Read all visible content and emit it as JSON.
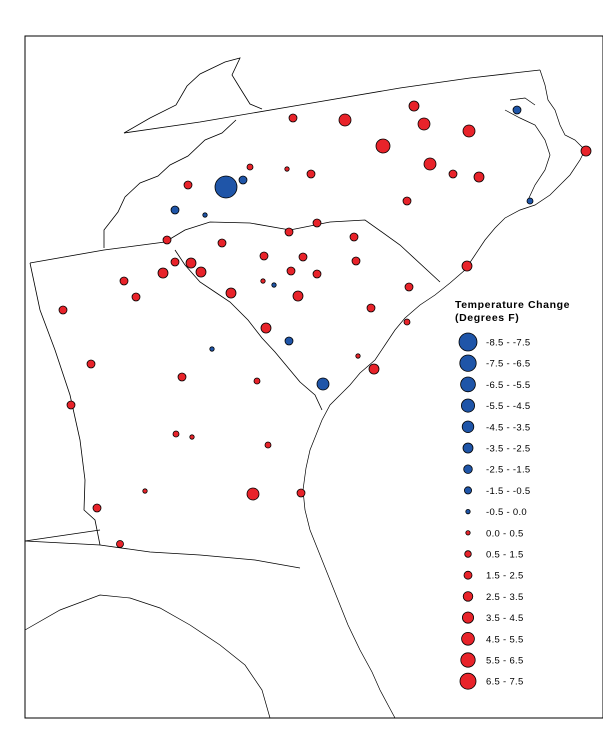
{
  "legend": {
    "title_line1": "Temperature Change",
    "title_line2": "(Degrees F)",
    "entries": [
      {
        "label": "-8.5 - -7.5",
        "color": "#1f55a8",
        "size": 9
      },
      {
        "label": "-7.5 - -6.5",
        "color": "#1f55a8",
        "size": 8.2
      },
      {
        "label": "-6.5 - -5.5",
        "color": "#1f55a8",
        "size": 7.4
      },
      {
        "label": "-5.5 - -4.5",
        "color": "#1f55a8",
        "size": 6.6
      },
      {
        "label": "-4.5 - -3.5",
        "color": "#1f55a8",
        "size": 5.8
      },
      {
        "label": "-3.5 - -2.5",
        "color": "#1f55a8",
        "size": 5
      },
      {
        "label": "-2.5 - -1.5",
        "color": "#1f55a8",
        "size": 4.3
      },
      {
        "label": "-1.5 - -0.5",
        "color": "#1f55a8",
        "size": 3.6
      },
      {
        "label": "-0.5 - 0.0",
        "color": "#1f55a8",
        "size": 2.2
      },
      {
        "label": "0.0 - 0.5",
        "color": "#e8232a",
        "size": 2.2
      },
      {
        "label": "0.5 - 1.5",
        "color": "#e8232a",
        "size": 3.3
      },
      {
        "label": "1.5 - 2.5",
        "color": "#e8232a",
        "size": 4
      },
      {
        "label": "2.5 - 3.5",
        "color": "#e8232a",
        "size": 4.8
      },
      {
        "label": "3.5 - 4.5",
        "color": "#e8232a",
        "size": 5.6
      },
      {
        "label": "4.5 - 5.5",
        "color": "#e8232a",
        "size": 6.4
      },
      {
        "label": "5.5 - 6.5",
        "color": "#e8232a",
        "size": 7.2
      },
      {
        "label": "6.5 - 7.5",
        "color": "#e8232a",
        "size": 8
      }
    ]
  },
  "colors": {
    "warming": "#e8232a",
    "cooling": "#1f55a8",
    "outline": "#000000",
    "background": "#ffffff"
  }
}
